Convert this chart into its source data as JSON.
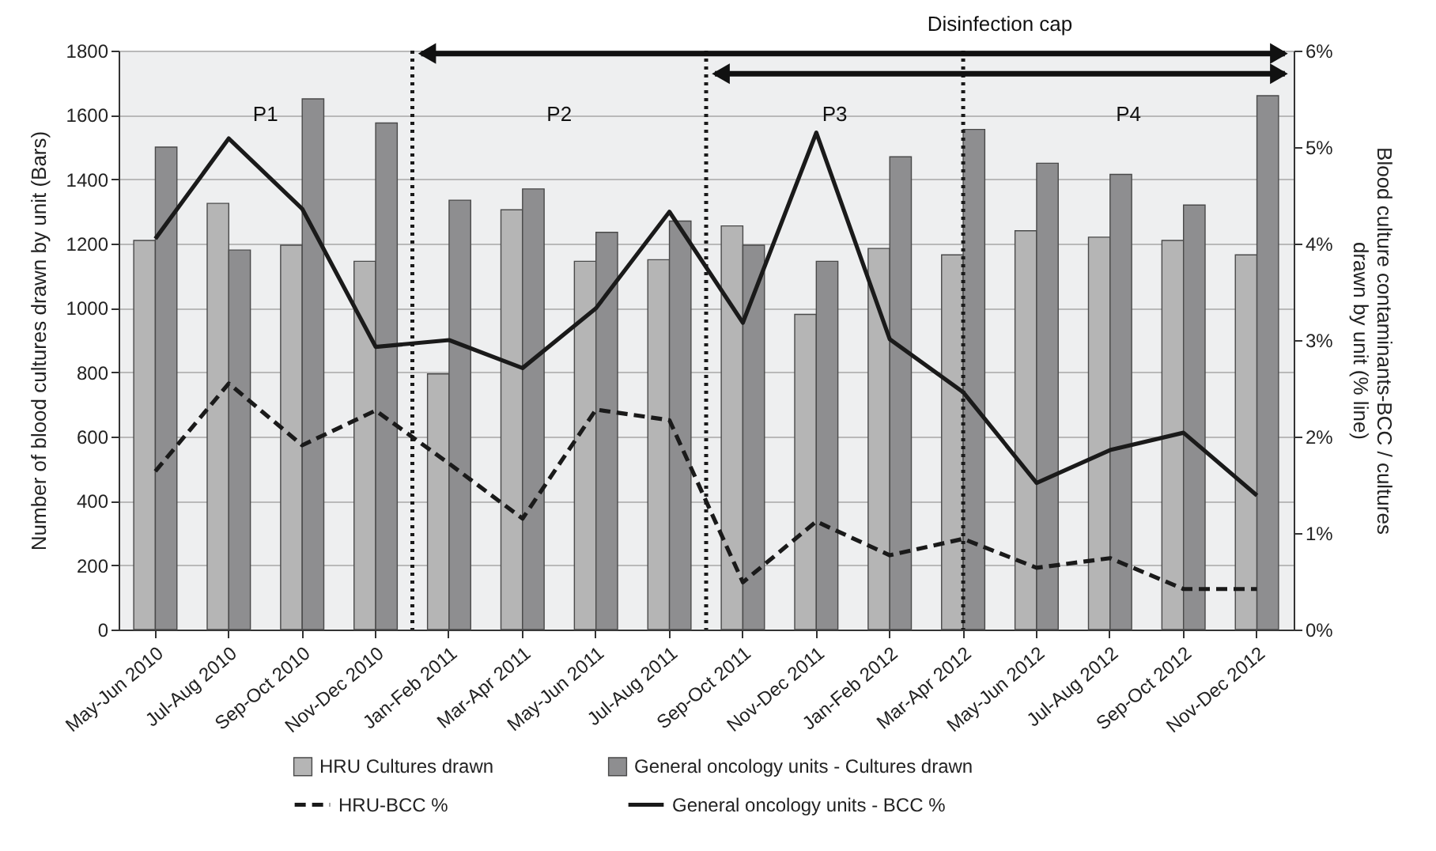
{
  "chart_data": {
    "type": "bar",
    "categories": [
      "May-Jun 2010",
      "Jul-Aug 2010",
      "Sep-Oct 2010",
      "Nov-Dec 2010",
      "Jan-Feb 2011",
      "Mar-Apr 2011",
      "May-Jun 2011",
      "Jul-Aug 2011",
      "Sep-Oct 2011",
      "Nov-Dec 2011",
      "Jan-Feb 2012",
      "Mar-Apr 2012",
      "May-Jun 2012",
      "Jul-Aug 2012",
      "Sep-Oct 2012",
      "Nov-Dec 2012"
    ],
    "series": [
      {
        "name": "HRU Cultures drawn",
        "color": "#b5b5b5",
        "values": [
          1210,
          1325,
          1195,
          1145,
          795,
          1305,
          1145,
          1150,
          1255,
          980,
          1185,
          1165,
          1240,
          1220,
          1210,
          1165
        ]
      },
      {
        "name": "General oncology units - Cultures drawn",
        "color": "#8e8e90",
        "values": [
          1500,
          1180,
          1650,
          1575,
          1335,
          1370,
          1235,
          1270,
          1195,
          1145,
          1470,
          1555,
          1450,
          1415,
          1320,
          1660
        ]
      },
      {
        "name": "HRU-BCC %",
        "type": "line",
        "axis": "y2",
        "color": "#1a1a1a",
        "line_style": "dashed",
        "values": [
          1.64,
          2.55,
          1.91,
          2.27,
          1.72,
          1.15,
          2.28,
          2.17,
          0.49,
          1.12,
          0.77,
          0.94,
          0.64,
          0.74,
          0.42,
          0.42
        ]
      },
      {
        "name": "General oncology units - BCC %",
        "type": "line",
        "axis": "y2",
        "color": "#1a1a1a",
        "line_style": "solid",
        "values": [
          4.05,
          5.09,
          4.36,
          2.93,
          3.0,
          2.71,
          3.33,
          4.33,
          3.18,
          5.15,
          3.01,
          2.46,
          1.52,
          1.86,
          2.04,
          1.39
        ]
      }
    ],
    "ylabel": "Number of blood cultures drawn by unit (Bars)",
    "y2label": "Blood culture contaminants-BCC / cultures drawn by unit (% line)",
    "ylim": [
      0,
      1800
    ],
    "yticks": [
      0,
      200,
      400,
      600,
      800,
      1000,
      1200,
      1400,
      1600,
      1800
    ],
    "y2lim": [
      0,
      6
    ],
    "y2ticks": [
      {
        "value": 0,
        "label": "0%"
      },
      {
        "value": 1,
        "label": "1%"
      },
      {
        "value": 2,
        "label": "2%"
      },
      {
        "value": 3,
        "label": "3%"
      },
      {
        "value": 4,
        "label": "4%"
      },
      {
        "value": 5,
        "label": "5%"
      },
      {
        "value": 6,
        "label": "6%"
      }
    ],
    "ref_lines": [
      {
        "axis": "x",
        "value": "Mar-Apr 2012",
        "line_style": "dotted",
        "color": "#1a1a1a"
      }
    ],
    "annotations": [
      "P1",
      "P2",
      "P3",
      "P4",
      "Disinfection cap"
    ],
    "grid": "y",
    "legend": "bottom"
  }
}
